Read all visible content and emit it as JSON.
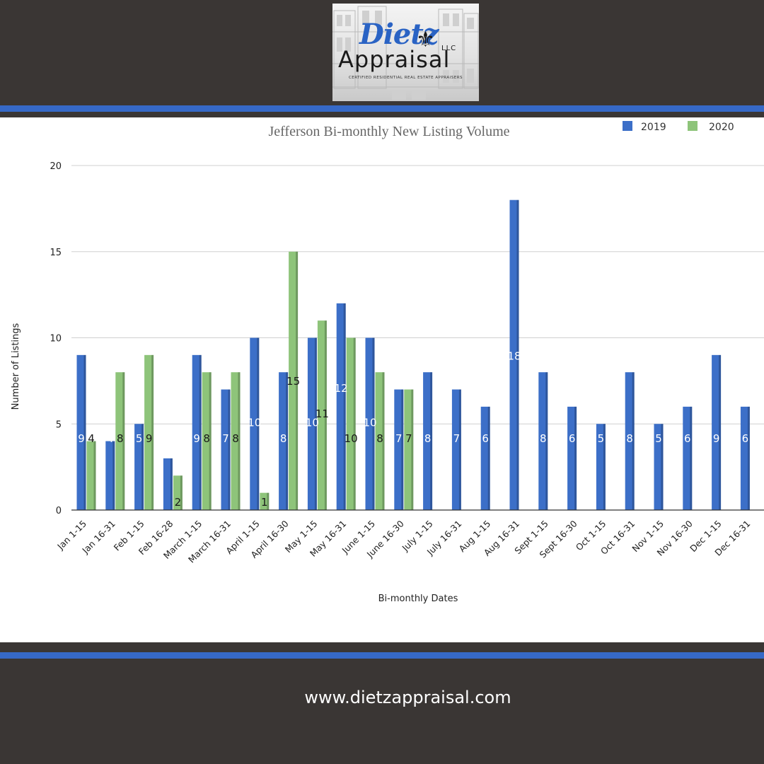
{
  "logo": {
    "brand_name": "Dietz",
    "word": "Appraisal",
    "suffix": "LLC",
    "tagline": "CERTIFIED RESIDENTIAL REAL ESTATE APPRAISERS"
  },
  "colors": {
    "background": "#3a3634",
    "stripe": "#3669c7",
    "series_2019": "#3c6fc8",
    "series_2020": "#8ec47a"
  },
  "footer": {
    "url": "www.dietzappraisal.com"
  },
  "chart_data": {
    "type": "bar",
    "title": "Jefferson Bi-monthly New Listing Volume",
    "xlabel": "Bi-monthly Dates",
    "ylabel": "Number of Listings",
    "ylim": [
      0,
      20
    ],
    "yticks": [
      "0",
      "5",
      "10",
      "15",
      "20"
    ],
    "grid": true,
    "legend_position": "top-right",
    "categories": [
      "Jan 1-15",
      "Jan 16-31",
      "Feb 1-15",
      "Feb 16-28",
      "March 1-15",
      "March 16-31",
      "April 1-15",
      "April 16-30",
      "May 1-15",
      "May 16-31",
      "June 1-15",
      "June 16-30",
      "July 1-15",
      "July 16-31",
      "Aug 1-15",
      "Aug 16-31",
      "Sept 1-15",
      "Sept 16-30",
      "Oct 1-15",
      "Oct 16-31",
      "Nov 1-15",
      "Nov 16-30",
      "Dec 1-15",
      "Dec 16-31"
    ],
    "series": [
      {
        "name": "2019",
        "color": "#3c6fc8",
        "values": [
          9,
          4,
          5,
          3,
          9,
          7,
          10,
          8,
          10,
          12,
          10,
          7,
          8,
          7,
          6,
          18,
          8,
          6,
          5,
          8,
          5,
          6,
          9,
          6
        ]
      },
      {
        "name": "2020",
        "color": "#8ec47a",
        "values": [
          4,
          8,
          9,
          2,
          8,
          8,
          1,
          15,
          11,
          10,
          8,
          7,
          null,
          null,
          null,
          null,
          null,
          null,
          null,
          null,
          null,
          null,
          null,
          null
        ]
      }
    ]
  }
}
